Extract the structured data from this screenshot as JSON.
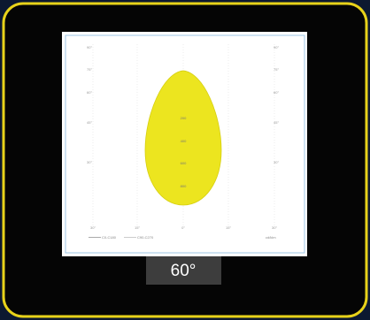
{
  "diagram": {
    "left_ticks": [
      "90°",
      "75°",
      "60°",
      "45°",
      "30°"
    ],
    "right_ticks": [
      "90°",
      "75°",
      "60°",
      "45°",
      "30°"
    ],
    "bottom_ticks": [
      "30°",
      "15°",
      "0°",
      "15°",
      "30°"
    ],
    "center_values": [
      "200",
      "400",
      "600",
      "800"
    ],
    "legend": [
      "C0-C180",
      "C90-C270"
    ],
    "unit": "cd/klm",
    "caption": "60°"
  }
}
